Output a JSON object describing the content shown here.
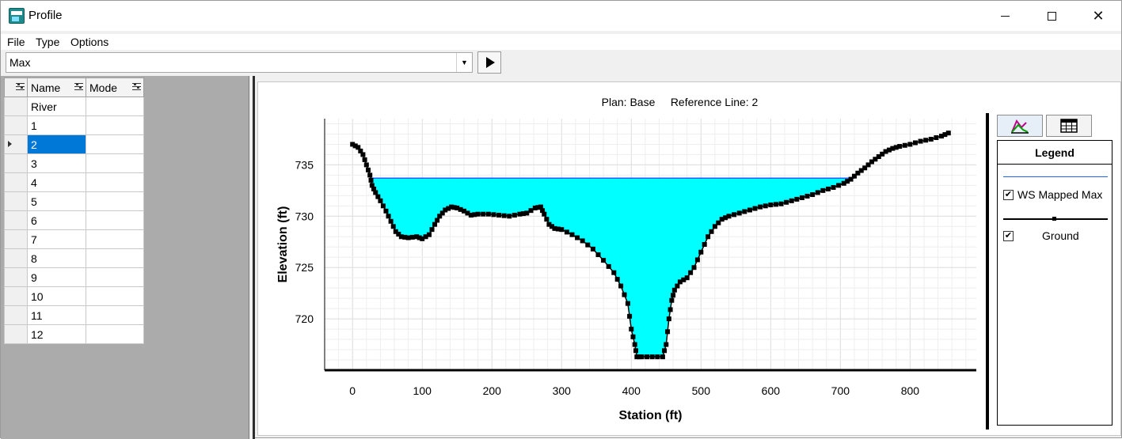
{
  "window": {
    "title": "Profile"
  },
  "icons": {
    "app": "app-icon",
    "minimize": "minimize-icon",
    "maximize": "maximize-icon",
    "close": "close-icon",
    "dropdown": "chevron-down-icon",
    "play": "play-icon",
    "graph": "graph-icon",
    "table": "table-icon",
    "column_menu": "column-options-icon"
  },
  "menu": {
    "items": [
      "File",
      "Type",
      "Options"
    ]
  },
  "profile_select": {
    "value": "Max"
  },
  "grid": {
    "headers": {
      "name": "Name",
      "mode": "Mode"
    },
    "rows": [
      "River",
      "1",
      "2",
      "3",
      "4",
      "5",
      "6",
      "7",
      "8",
      "9",
      "10",
      "11",
      "12"
    ],
    "selected_index": 2
  },
  "legend": {
    "title": "Legend",
    "entries": [
      {
        "label": "WS Mapped Max",
        "checked": true,
        "color": "#1f5fff"
      },
      {
        "label": "Ground",
        "checked": true,
        "color": "#000000"
      }
    ]
  },
  "chart_data": {
    "type": "area",
    "title": "Plan: Base     Reference Line: 2",
    "xlabel": "Station (ft)",
    "ylabel": "Elevation (ft)",
    "xlim": [
      -40,
      895
    ],
    "ylim": [
      715,
      739.5
    ],
    "xticks": [
      0,
      100,
      200,
      300,
      400,
      500,
      600,
      700,
      800
    ],
    "yticks": [
      720,
      725,
      730,
      735
    ],
    "grid": true,
    "colors": {
      "water_fill": "#00ffff",
      "water_line": "#1f5fff",
      "ground": "#000000"
    },
    "series": [
      {
        "name": "WS Mapped Max",
        "x": [
          27,
          720
        ],
        "y": [
          733.7,
          733.7
        ]
      },
      {
        "name": "Ground",
        "x": [
          0,
          8,
          15,
          20,
          25,
          28,
          33,
          40,
          48,
          55,
          62,
          70,
          80,
          92,
          100,
          110,
          118,
          125,
          133,
          142,
          150,
          160,
          170,
          180,
          195,
          210,
          225,
          240,
          250,
          262,
          270,
          275,
          282,
          290,
          300,
          315,
          330,
          345,
          360,
          375,
          385,
          395,
          400,
          405,
          408,
          415,
          430,
          445,
          450,
          454,
          458,
          462,
          470,
          480,
          490,
          500,
          510,
          520,
          530,
          540,
          555,
          570,
          585,
          600,
          615,
          630,
          645,
          660,
          675,
          690,
          705,
          715,
          725,
          735,
          745,
          755,
          765,
          775,
          785,
          800,
          815,
          830,
          845,
          855
        ],
        "y": [
          737,
          736.7,
          736,
          735,
          734,
          733,
          732.3,
          731.5,
          730.5,
          729.5,
          728.5,
          728,
          727.9,
          728,
          727.8,
          728.2,
          729.2,
          730,
          730.6,
          730.9,
          730.8,
          730.5,
          730.1,
          730.2,
          730.2,
          730.1,
          730,
          730.2,
          730.3,
          730.8,
          730.9,
          730.2,
          729.2,
          728.8,
          728.7,
          728.2,
          727.6,
          726.8,
          725.7,
          724.5,
          723.2,
          721.5,
          719,
          717.5,
          716.3,
          716.3,
          716.3,
          716.3,
          717.5,
          720,
          721.8,
          722.8,
          723.6,
          724,
          725,
          726.5,
          728,
          729,
          729.7,
          730,
          730.3,
          730.6,
          730.9,
          731.1,
          731.2,
          731.5,
          731.8,
          732.1,
          732.5,
          732.8,
          733.2,
          733.6,
          734.2,
          734.7,
          735.3,
          735.8,
          736.3,
          736.6,
          736.8,
          737,
          737.3,
          737.5,
          737.8,
          738.1
        ]
      }
    ]
  }
}
